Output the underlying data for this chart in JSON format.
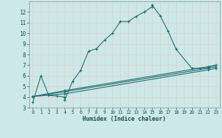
{
  "xlabel": "Humidex (Indice chaleur)",
  "background_color": "#cce8e8",
  "grid_color": "#e8c8c8",
  "line_color": "#1a6b6b",
  "xlim": [
    -0.5,
    23.5
  ],
  "ylim": [
    3,
    13
  ],
  "xticks": [
    0,
    1,
    2,
    3,
    4,
    5,
    6,
    7,
    8,
    9,
    10,
    11,
    12,
    13,
    14,
    15,
    16,
    17,
    18,
    19,
    20,
    21,
    22,
    23
  ],
  "yticks": [
    3,
    4,
    5,
    6,
    7,
    8,
    9,
    10,
    11,
    12
  ],
  "curve1_x": [
    0,
    1,
    2,
    3,
    4,
    4,
    5,
    6,
    7,
    8,
    9,
    10,
    11,
    12,
    13,
    14,
    15,
    15,
    16,
    17,
    18,
    20,
    21,
    22,
    23
  ],
  "curve1_y": [
    3.5,
    6.0,
    4.15,
    4.1,
    4.0,
    3.7,
    5.5,
    6.5,
    8.3,
    8.55,
    9.35,
    10.0,
    11.1,
    11.1,
    11.6,
    12.0,
    12.5,
    12.65,
    11.65,
    10.2,
    8.5,
    6.7,
    6.7,
    6.8,
    7.0
  ],
  "curve2_x": [
    0,
    4,
    22,
    23
  ],
  "curve2_y": [
    4.05,
    4.5,
    6.7,
    6.85
  ],
  "curve3_x": [
    0,
    4,
    22,
    23
  ],
  "curve3_y": [
    4.05,
    4.3,
    6.55,
    6.7
  ],
  "curve4_x": [
    0,
    4,
    22,
    23
  ],
  "curve4_y": [
    4.05,
    4.6,
    6.85,
    7.0
  ]
}
